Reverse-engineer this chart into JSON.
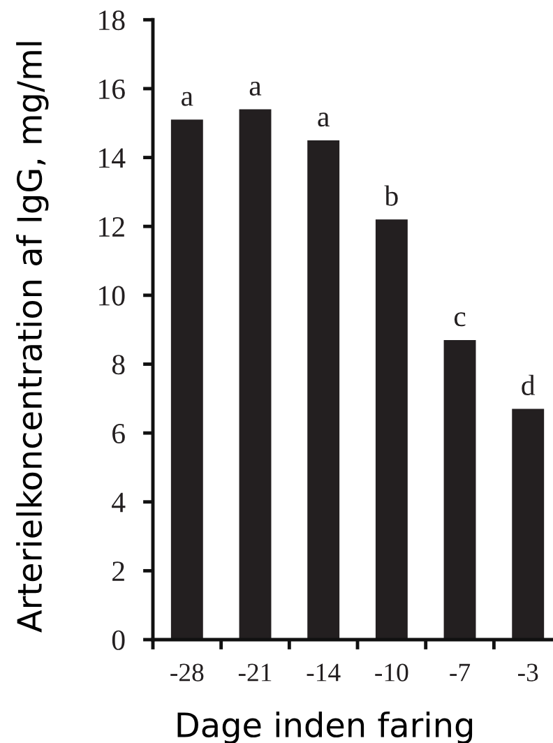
{
  "chart_data": {
    "type": "bar",
    "xlabel": "Dage inden faring",
    "ylabel": "Arterielkoncentration af IgG, mg/ml",
    "categories": [
      "-28",
      "-21",
      "-14",
      "-10",
      "-7",
      "-3"
    ],
    "values": [
      15.1,
      15.4,
      14.5,
      12.2,
      8.7,
      6.7
    ],
    "color": "#231f20",
    "value_labels": [
      "a",
      "a",
      "a",
      "b",
      "c",
      "d"
    ],
    "ylim": [
      0,
      18
    ],
    "yticks": [
      0,
      2,
      4,
      6,
      8,
      10,
      12,
      14,
      16,
      18
    ],
    "grid": false,
    "legend": false
  }
}
